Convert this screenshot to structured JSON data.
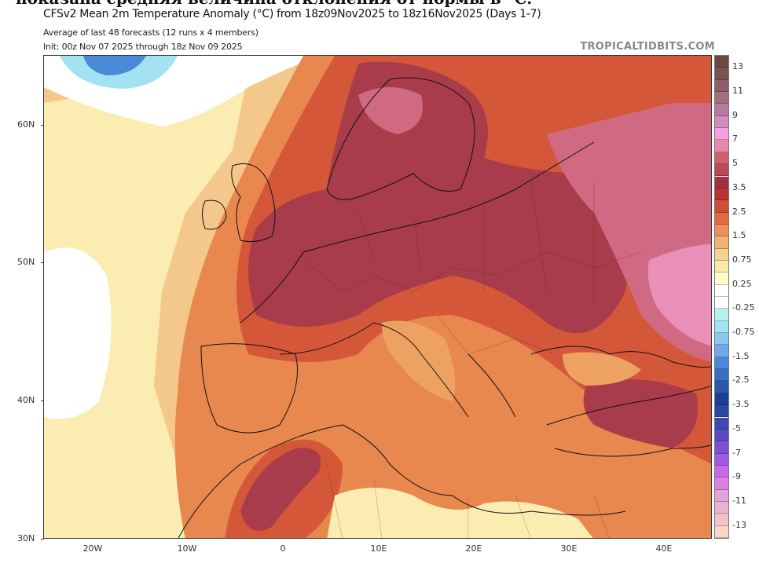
{
  "clipped_caption": "показана средняя величина отклонения от нормы в °C.",
  "header": {
    "title": "CFSv2 Mean 2m Temperature Anomaly (°C) from 18z09Nov2025 to 18z16Nov2025 (Days 1-7)",
    "subtitle1": "Average of last 48 forecasts (12 runs x 4 members)",
    "subtitle2": "Init: 00z Nov 07 2025 through 18z Nov 09 2025",
    "watermark": "TROPICALTIDBITS.COM"
  },
  "axes": {
    "lat_labels": [
      "60N",
      "50N",
      "40N",
      "30N"
    ],
    "lon_labels": [
      "20W",
      "10W",
      "0",
      "10E",
      "20E",
      "30E",
      "40E"
    ]
  },
  "colorbar": {
    "labels": [
      "13",
      "11",
      "9",
      "7",
      "5",
      "3.5",
      "2.5",
      "1.5",
      "0.75",
      "0.25",
      "-0.25",
      "-0.75",
      "-1.5",
      "-2.5",
      "-3.5",
      "-5",
      "-7",
      "-9",
      "-11",
      "-13"
    ],
    "colors": [
      "#6b4a3a",
      "#7a5252",
      "#8e5f6a",
      "#a2707e",
      "#b87a9a",
      "#d28cc2",
      "#f2a2de",
      "#ea88aa",
      "#d26070",
      "#ba4858",
      "#a23042",
      "#ba3232",
      "#d24c3a",
      "#e26a42",
      "#ee8e5a",
      "#f2b272",
      "#f6d294",
      "#faeaa8",
      "#fcfcc8",
      "#ffffff",
      "#ffffff",
      "#b2f2f0",
      "#a2e2f2",
      "#8ac8f2",
      "#70a8ea",
      "#4a88da",
      "#3a70c2",
      "#2a58aa",
      "#1c4090",
      "#2a48a2",
      "#4248b2",
      "#6048c2",
      "#8050d2",
      "#a258e2",
      "#ca68ea",
      "#da82e2",
      "#e2a2da",
      "#eab2d2",
      "#f2c2ca",
      "#f8d8c2"
    ]
  },
  "map_colors": {
    "ocean_light": "#f4c88c",
    "pale": "#fbecb2",
    "orange": "#e8884e",
    "red": "#d4573a",
    "maroon": "#a83c4a",
    "pink": "#d06a82",
    "light_pink": "#e890b8",
    "blue": "#4a88da",
    "cyan": "#a2e2f2"
  }
}
